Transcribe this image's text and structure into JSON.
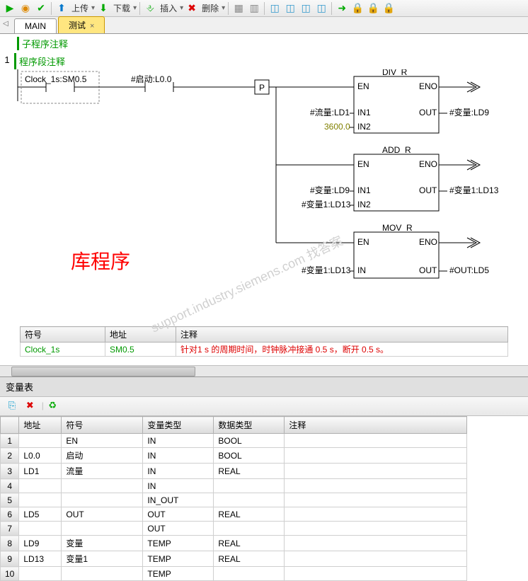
{
  "toolbar": {
    "upload": "上传",
    "download": "下载",
    "insert": "插入",
    "delete": "删除"
  },
  "tabs": {
    "items": [
      {
        "label": "MAIN",
        "active": false
      },
      {
        "label": "测试",
        "active": true
      }
    ]
  },
  "program": {
    "sub_comment": "子程序注释",
    "network_num": "1",
    "network_comment": "程序段注释",
    "big_label": "库程序",
    "contacts": {
      "c1": "Clock_1s:SM0.5",
      "c2": "#启动:L0.0",
      "pulse": "P"
    },
    "blocks": {
      "div": {
        "title": "DIV_R",
        "en": "EN",
        "eno": "ENO",
        "in1": "IN1",
        "in2": "IN2",
        "out": "OUT",
        "in1_label": "#流量:LD1",
        "in2_label": "3600.0",
        "out_label": "#变量:LD9"
      },
      "add": {
        "title": "ADD_R",
        "en": "EN",
        "eno": "ENO",
        "in1": "IN1",
        "in2": "IN2",
        "out": "OUT",
        "in1_label": "#变量:LD9",
        "in2_label": "#变量1:LD13",
        "out_label": "#变量1:LD13"
      },
      "mov": {
        "title": "MOV_R",
        "en": "EN",
        "eno": "ENO",
        "in": "IN",
        "out": "OUT",
        "in_label": "#变量1:LD13",
        "out_label": "#OUT:LD5"
      }
    },
    "symtable": {
      "h1": "符号",
      "h2": "地址",
      "h3": "注释",
      "r1c1": "Clock_1s",
      "r1c2": "SM0.5",
      "r1c3": "针对1 s 的周期时间，时钟脉冲接通 0.5 s，断开 0.5 s。"
    }
  },
  "vartable": {
    "title": "变量表",
    "headers": {
      "addr": "地址",
      "sym": "符号",
      "vartype": "变量类型",
      "datatype": "数据类型",
      "comment": "注释"
    },
    "rows": [
      {
        "n": "1",
        "addr": "",
        "sym": "EN",
        "vt": "IN",
        "dt": "BOOL",
        "c": ""
      },
      {
        "n": "2",
        "addr": "L0.0",
        "sym": "启动",
        "vt": "IN",
        "dt": "BOOL",
        "c": ""
      },
      {
        "n": "3",
        "addr": "LD1",
        "sym": "流量",
        "vt": "IN",
        "dt": "REAL",
        "c": ""
      },
      {
        "n": "4",
        "addr": "",
        "sym": "",
        "vt": "IN",
        "dt": "",
        "c": ""
      },
      {
        "n": "5",
        "addr": "",
        "sym": "",
        "vt": "IN_OUT",
        "dt": "",
        "c": ""
      },
      {
        "n": "6",
        "addr": "LD5",
        "sym": "OUT",
        "vt": "OUT",
        "dt": "REAL",
        "c": ""
      },
      {
        "n": "7",
        "addr": "",
        "sym": "",
        "vt": "OUT",
        "dt": "",
        "c": ""
      },
      {
        "n": "8",
        "addr": "LD9",
        "sym": "变量",
        "vt": "TEMP",
        "dt": "REAL",
        "c": ""
      },
      {
        "n": "9",
        "addr": "LD13",
        "sym": "变量1",
        "vt": "TEMP",
        "dt": "REAL",
        "c": ""
      },
      {
        "n": "10",
        "addr": "",
        "sym": "",
        "vt": "TEMP",
        "dt": "",
        "c": ""
      }
    ]
  },
  "watermark": "support.industry.siemens.com 找答案",
  "colors": {
    "green": "#009900",
    "red": "#ff0000",
    "olive": "#808000",
    "line": "#000000"
  }
}
